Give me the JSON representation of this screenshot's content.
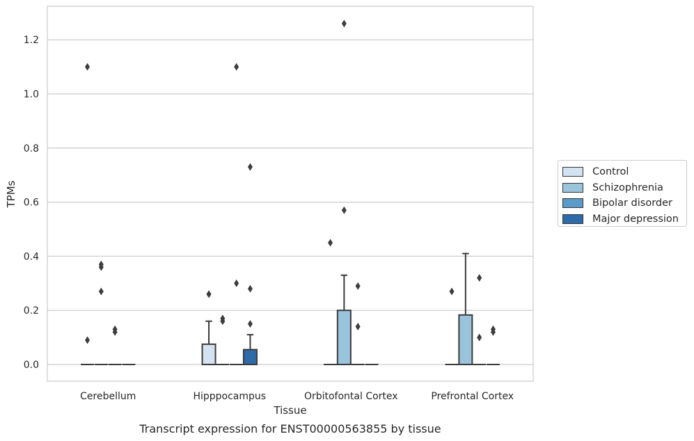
{
  "chart_data": {
    "type": "boxplot",
    "caption": "Transcript expression for ENST00000563855 by tissue",
    "xlabel": "Tissue",
    "ylabel": "TPMs",
    "ylim": [
      -0.062,
      1.32
    ],
    "yticks": [
      "0.0",
      "0.2",
      "0.4",
      "0.6",
      "0.8",
      "1.0",
      "1.2"
    ],
    "grid": "horizontal",
    "legend_position": "right",
    "categories": [
      "Cerebellum",
      "Hipppocampus",
      "Orbitofontal Cortex",
      "Prefrontal Cortex"
    ],
    "series": [
      {
        "name": "Control",
        "color": "#d4e3f2",
        "boxes": [
          {
            "q1": 0,
            "median": 0,
            "q3": 0,
            "whislo": 0,
            "whishi": 0,
            "fliers": [
              1.1,
              0.09
            ]
          },
          {
            "q1": 0,
            "median": 0,
            "q3": 0.075,
            "whislo": 0,
            "whishi": 0.16,
            "fliers": [
              0.26,
              0.26
            ]
          },
          {
            "q1": 0,
            "median": 0,
            "q3": 0,
            "whislo": 0,
            "whishi": 0,
            "fliers": [
              0.45
            ]
          },
          {
            "q1": 0,
            "median": 0,
            "q3": 0,
            "whislo": 0,
            "whishi": 0,
            "fliers": [
              0.27
            ]
          }
        ]
      },
      {
        "name": "Schizophrenia",
        "color": "#9ac3dc",
        "boxes": [
          {
            "q1": 0,
            "median": 0,
            "q3": 0,
            "whislo": 0,
            "whishi": 0,
            "fliers": [
              0.37,
              0.36,
              0.27
            ]
          },
          {
            "q1": 0,
            "median": 0,
            "q3": 0,
            "whislo": 0,
            "whishi": 0,
            "fliers": [
              0.17,
              0.16
            ]
          },
          {
            "q1": 0,
            "median": 0,
            "q3": 0.2,
            "whislo": 0,
            "whishi": 0.33,
            "fliers": [
              1.26,
              0.57
            ]
          },
          {
            "q1": 0,
            "median": 0,
            "q3": 0.183,
            "whislo": 0,
            "whishi": 0.41,
            "fliers": []
          }
        ]
      },
      {
        "name": "Bipolar disorder",
        "color": "#5a9bc9",
        "boxes": [
          {
            "q1": 0,
            "median": 0,
            "q3": 0,
            "whislo": 0,
            "whishi": 0,
            "fliers": [
              0.13,
              0.12
            ]
          },
          {
            "q1": 0,
            "median": 0,
            "q3": 0,
            "whislo": 0,
            "whishi": 0,
            "fliers": [
              1.1,
              0.3
            ]
          },
          {
            "q1": 0,
            "median": 0,
            "q3": 0,
            "whislo": 0,
            "whishi": 0,
            "fliers": [
              0.29,
              0.14
            ]
          },
          {
            "q1": 0,
            "median": 0,
            "q3": 0,
            "whislo": 0,
            "whishi": 0,
            "fliers": [
              0.32,
              0.1
            ]
          }
        ]
      },
      {
        "name": "Major depression",
        "color": "#2d6aa8",
        "boxes": [
          {
            "q1": 0,
            "median": 0,
            "q3": 0,
            "whislo": 0,
            "whishi": 0,
            "fliers": []
          },
          {
            "q1": 0,
            "median": 0,
            "q3": 0.055,
            "whislo": 0,
            "whishi": 0.11,
            "fliers": [
              0.73,
              0.28,
              0.15
            ]
          },
          {
            "q1": 0,
            "median": 0,
            "q3": 0,
            "whislo": 0,
            "whishi": 0,
            "fliers": []
          },
          {
            "q1": 0,
            "median": 0,
            "q3": 0,
            "whislo": 0,
            "whishi": 0,
            "fliers": [
              0.13,
              0.12
            ]
          }
        ]
      }
    ]
  }
}
